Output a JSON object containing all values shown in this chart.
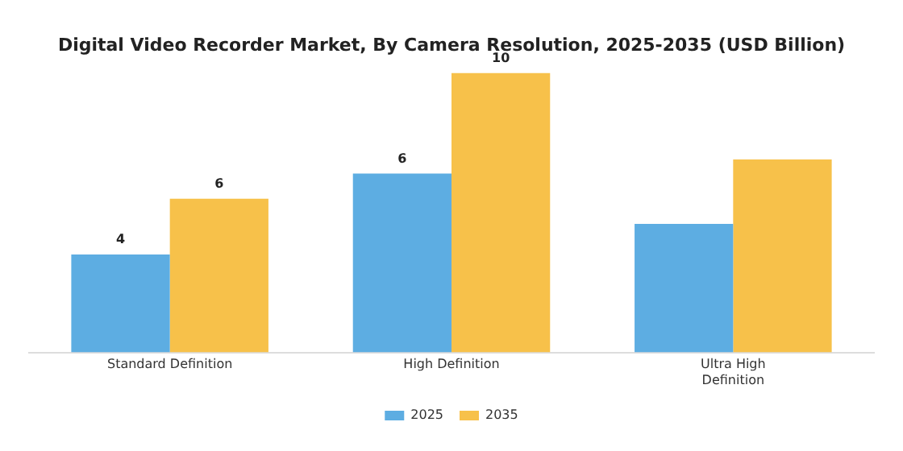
{
  "chart_data": {
    "type": "bar",
    "title": "Digital Video Recorder Market, By Camera Resolution, 2025-2035 (USD Billion)",
    "categories": [
      "Standard Definition",
      "High Definition",
      "Ultra High Definition"
    ],
    "series": [
      {
        "name": "2025",
        "color": "#5dade2",
        "values": [
          3.5,
          6.4,
          4.6
        ],
        "value_labels": [
          "4",
          "6",
          null
        ]
      },
      {
        "name": "2035",
        "color": "#f7c14a",
        "values": [
          5.5,
          10,
          6.9
        ],
        "value_labels": [
          "6",
          "10",
          null
        ]
      }
    ],
    "legend": "bottom",
    "grid": false
  }
}
